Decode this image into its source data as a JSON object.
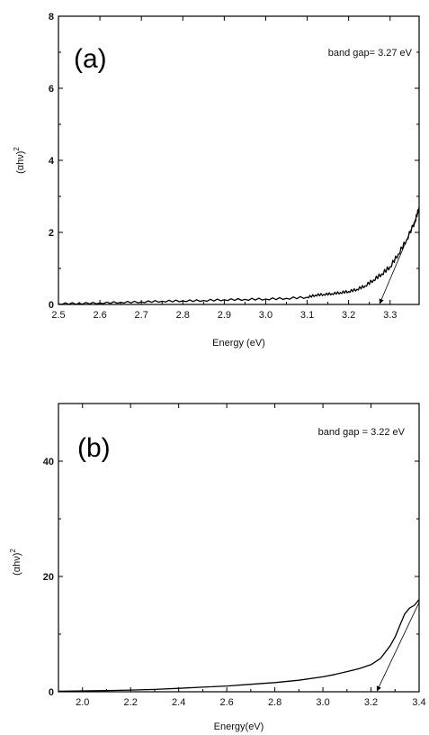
{
  "chart_data": [
    {
      "type": "line",
      "panel_label": "(a)",
      "annotation": "band gap= 3.27 eV",
      "xlabel": "Energy (eV)",
      "ylabel_base": "(αhν)",
      "ylabel_sup": "2",
      "xlim": [
        2.5,
        3.37
      ],
      "ylim": [
        0,
        8
      ],
      "xticks": [
        2.5,
        2.6,
        2.7,
        2.8,
        2.9,
        3.0,
        3.1,
        3.2,
        3.3
      ],
      "xtick_labels": [
        "2.5",
        "2.6",
        "2.7",
        "2.8",
        "2.9",
        "3.0",
        "3.1",
        "3.2",
        "3.3"
      ],
      "yticks": [
        0,
        2,
        4,
        6,
        8
      ],
      "ytick_labels": [
        "0",
        "2",
        "4",
        "6",
        "8"
      ],
      "grid": false,
      "x": [
        2.5,
        2.55,
        2.6,
        2.65,
        2.7,
        2.75,
        2.8,
        2.85,
        2.9,
        2.95,
        3.0,
        3.05,
        3.1,
        3.12,
        3.14,
        3.16,
        3.18,
        3.2,
        3.22,
        3.24,
        3.26,
        3.28,
        3.3,
        3.32,
        3.34,
        3.36,
        3.37
      ],
      "y": [
        0.02,
        0.03,
        0.04,
        0.06,
        0.07,
        0.09,
        0.1,
        0.11,
        0.13,
        0.14,
        0.15,
        0.17,
        0.2,
        0.26,
        0.28,
        0.3,
        0.33,
        0.36,
        0.42,
        0.52,
        0.68,
        0.85,
        1.05,
        1.4,
        1.8,
        2.3,
        2.7
      ],
      "tangent": {
        "x": [
          3.275,
          3.37
        ],
        "y": [
          0.0,
          2.6
        ]
      }
    },
    {
      "type": "line",
      "panel_label": "(b)",
      "annotation": "band gap = 3.22 eV",
      "xlabel": "Energy(eV)",
      "ylabel_base": "(αhν)",
      "ylabel_sup": "2",
      "xlim": [
        1.9,
        3.4
      ],
      "ylim": [
        0,
        50
      ],
      "xticks": [
        2.0,
        2.2,
        2.4,
        2.6,
        2.8,
        3.0,
        3.2,
        3.4
      ],
      "xtick_labels": [
        "2.0",
        "2.2",
        "2.4",
        "2.6",
        "2.8",
        "3.0",
        "3.2",
        "3.4"
      ],
      "yticks": [
        0,
        20,
        40
      ],
      "ytick_labels": [
        "0",
        "20",
        "40"
      ],
      "grid": false,
      "x": [
        1.9,
        2.0,
        2.1,
        2.2,
        2.3,
        2.4,
        2.5,
        2.6,
        2.7,
        2.8,
        2.9,
        3.0,
        3.05,
        3.1,
        3.15,
        3.2,
        3.24,
        3.28,
        3.3,
        3.32,
        3.34,
        3.36,
        3.38,
        3.4
      ],
      "y": [
        0.1,
        0.15,
        0.2,
        0.3,
        0.4,
        0.6,
        0.8,
        1.0,
        1.3,
        1.6,
        2.0,
        2.6,
        3.0,
        3.5,
        4.0,
        4.7,
        5.8,
        8.0,
        9.5,
        11.5,
        13.5,
        14.5,
        15.0,
        16.0
      ],
      "tangent": {
        "x": [
          3.225,
          3.4
        ],
        "y": [
          0.0,
          15.5
        ]
      }
    }
  ]
}
